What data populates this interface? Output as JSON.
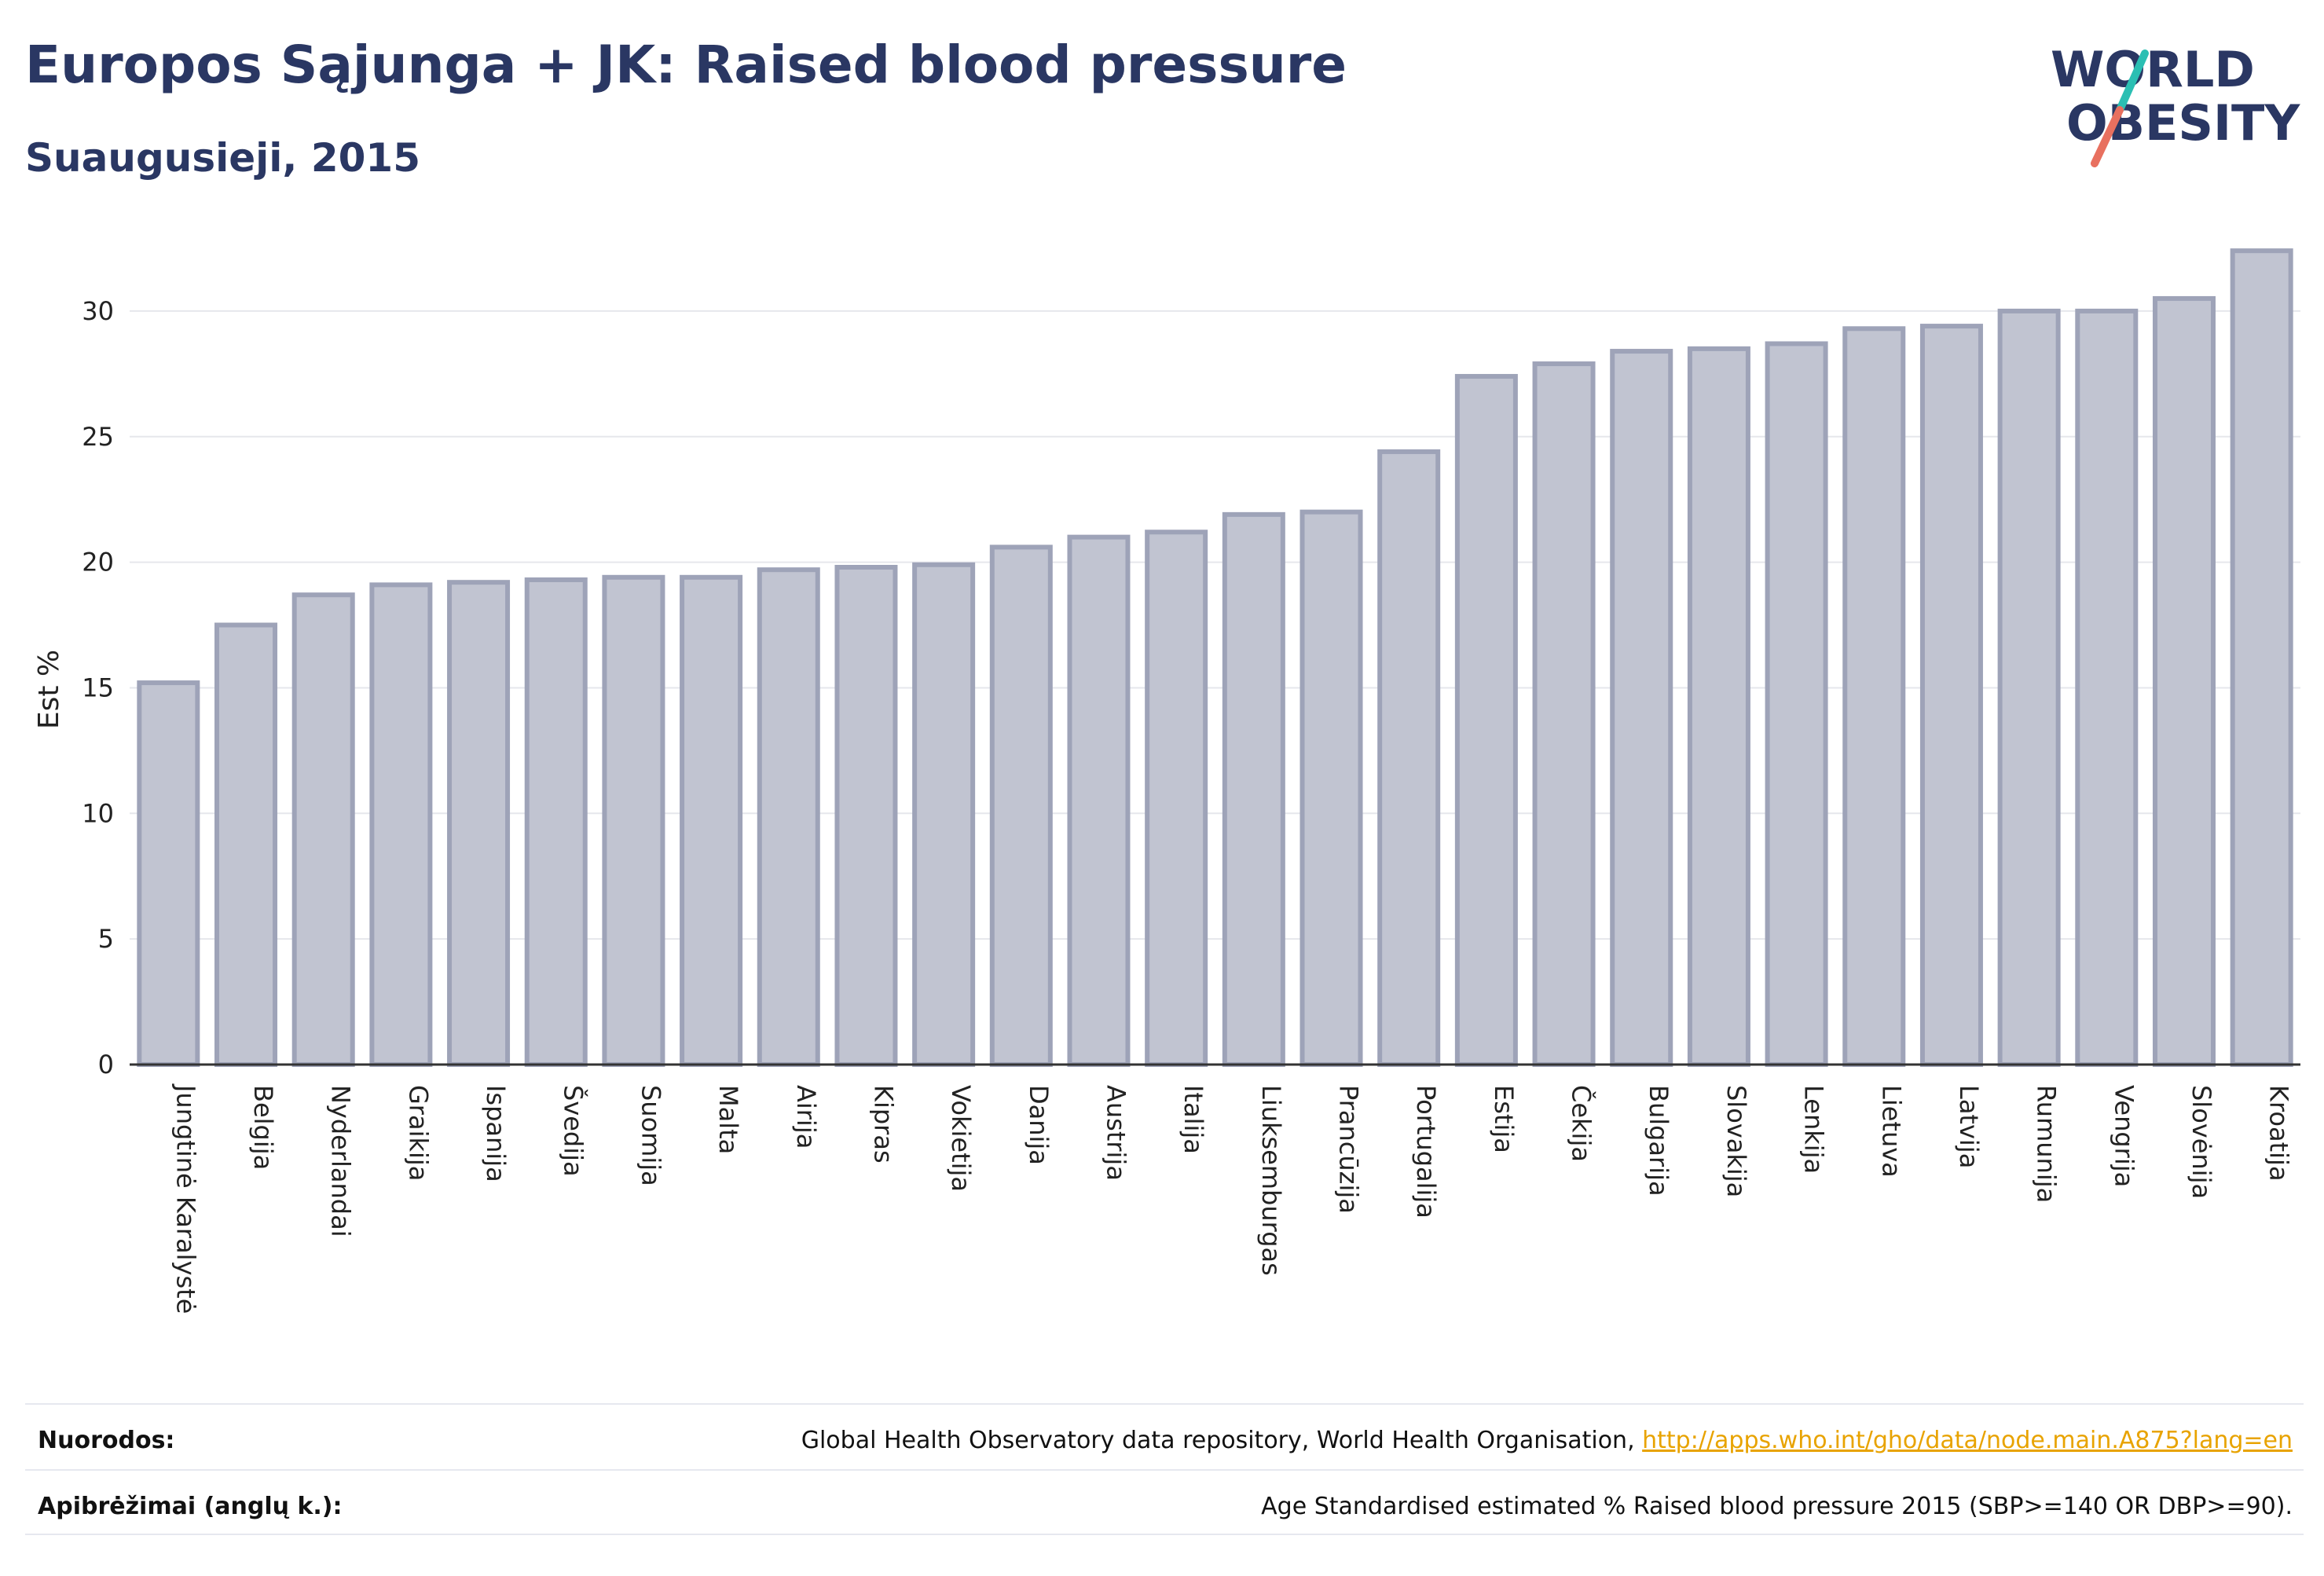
{
  "header": {
    "title": "Europos Sąjunga + JK: Raised blood pressure",
    "subtitle": "Suaugusieji, 2015"
  },
  "logo": {
    "line1": "WORLD",
    "line2": "OBESITY"
  },
  "colors": {
    "title": "#2a3763",
    "bar_fill": "#c1c4d1",
    "bar_stroke": "#9ea3b8",
    "grid": "#e6e7ec",
    "link": "#e8a300"
  },
  "chart_data": {
    "type": "bar",
    "ylabel": "Est %",
    "yticks": [
      0,
      5,
      10,
      15,
      20,
      25,
      30
    ],
    "ylim": [
      0,
      33
    ],
    "grid": true,
    "categories": [
      "Jungtinė Karalystė",
      "Belgija",
      "Nyderlandai",
      "Graikija",
      "Ispanija",
      "Švedija",
      "Suomija",
      "Malta",
      "Airija",
      "Kipras",
      "Vokietija",
      "Danija",
      "Austrija",
      "Italija",
      "Liuksemburgas",
      "Prancūzija",
      "Portugalija",
      "Estija",
      "Čekija",
      "Bulgarija",
      "Slovakija",
      "Lenkija",
      "Lietuva",
      "Latvija",
      "Rumunija",
      "Vengrija",
      "Slovėnija",
      "Kroatija"
    ],
    "values": [
      15.2,
      17.5,
      18.7,
      19.1,
      19.2,
      19.3,
      19.4,
      19.4,
      19.7,
      19.8,
      19.9,
      20.6,
      21.0,
      21.2,
      21.9,
      22.0,
      24.4,
      27.4,
      27.9,
      28.4,
      28.5,
      28.7,
      29.3,
      29.4,
      30.0,
      30.0,
      30.5,
      32.4
    ]
  },
  "footer": {
    "refs_label": "Nuorodos:",
    "refs_text": "Global Health Observatory data repository, World Health Organisation, ",
    "refs_link": "http://apps.who.int/gho/data/node.main.A875?lang=en",
    "defs_label": "Apibrėžimai (anglų k.):",
    "defs_text": "Age Standardised estimated % Raised blood pressure 2015 (SBP>=140 OR DBP>=90)."
  }
}
